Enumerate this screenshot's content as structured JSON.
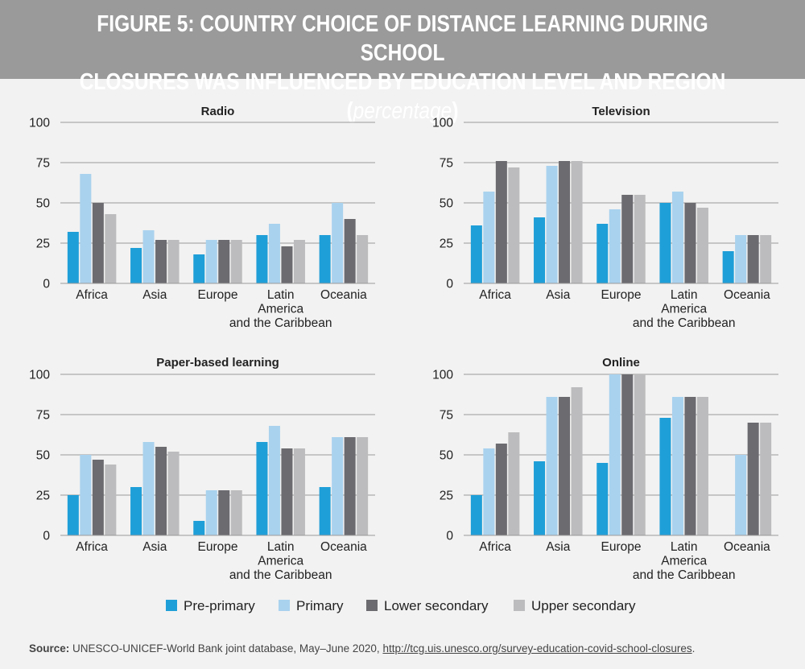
{
  "header": {
    "title_line1": "FIGURE 5: COUNTRY CHOICE OF DISTANCE LEARNING DURING SCHOOL",
    "title_line2": "CLOSURES WAS INFLUENCED BY EDUCATION LEVEL AND REGION (",
    "title_italic": "percentage",
    "title_close": ")"
  },
  "colors": {
    "pre_primary": "#1f9fd8",
    "primary": "#a9d2ee",
    "lower_secondary": "#6b6b70",
    "upper_secondary": "#bcbcbe",
    "gridline": "#9a9a9a",
    "header_bg": "#9a9a9a",
    "background": "#f2f2f2"
  },
  "legend": [
    {
      "label": "Pre-primary",
      "color": "#1f9fd8"
    },
    {
      "label": "Primary",
      "color": "#a9d2ee"
    },
    {
      "label": "Lower secondary",
      "color": "#6b6b70"
    },
    {
      "label": "Upper secondary",
      "color": "#bcbcbe"
    }
  ],
  "chart_data": [
    {
      "type": "bar",
      "title": "Radio",
      "categories": [
        "Africa",
        "Asia",
        "Europe",
        "Latin America and the Caribbean",
        "Oceania"
      ],
      "category_lines": [
        [
          "Africa"
        ],
        [
          "Asia"
        ],
        [
          "Europe"
        ],
        [
          "Latin",
          "America",
          "and the Caribbean"
        ],
        [
          "Oceania"
        ]
      ],
      "yticks": [
        0,
        25,
        50,
        75,
        100
      ],
      "ylim": [
        0,
        100
      ],
      "series": [
        {
          "name": "Pre-primary",
          "values": [
            32,
            22,
            18,
            30,
            30
          ]
        },
        {
          "name": "Primary",
          "values": [
            68,
            33,
            27,
            37,
            50
          ]
        },
        {
          "name": "Lower secondary",
          "values": [
            50,
            27,
            27,
            23,
            40
          ]
        },
        {
          "name": "Upper secondary",
          "values": [
            43,
            27,
            27,
            27,
            30
          ]
        }
      ]
    },
    {
      "type": "bar",
      "title": "Television",
      "categories": [
        "Africa",
        "Asia",
        "Europe",
        "Latin America and the Caribbean",
        "Oceania"
      ],
      "category_lines": [
        [
          "Africa"
        ],
        [
          "Asia"
        ],
        [
          "Europe"
        ],
        [
          "Latin",
          "America",
          "and the Caribbean"
        ],
        [
          "Oceania"
        ]
      ],
      "yticks": [
        0,
        25,
        50,
        75,
        100
      ],
      "ylim": [
        0,
        100
      ],
      "series": [
        {
          "name": "Pre-primary",
          "values": [
            36,
            41,
            37,
            50,
            20
          ]
        },
        {
          "name": "Primary",
          "values": [
            57,
            73,
            46,
            57,
            30
          ]
        },
        {
          "name": "Lower secondary",
          "values": [
            76,
            76,
            55,
            50,
            30
          ]
        },
        {
          "name": "Upper secondary",
          "values": [
            72,
            76,
            55,
            47,
            30
          ]
        }
      ]
    },
    {
      "type": "bar",
      "title": "Paper-based learning",
      "categories": [
        "Africa",
        "Asia",
        "Europe",
        "Latin America and the Caribbean",
        "Oceania"
      ],
      "category_lines": [
        [
          "Africa"
        ],
        [
          "Asia"
        ],
        [
          "Europe"
        ],
        [
          "Latin",
          "America",
          "and the Caribbean"
        ],
        [
          "Oceania"
        ]
      ],
      "yticks": [
        0,
        25,
        50,
        75,
        100
      ],
      "ylim": [
        0,
        100
      ],
      "series": [
        {
          "name": "Pre-primary",
          "values": [
            25,
            30,
            9,
            58,
            30
          ]
        },
        {
          "name": "Primary",
          "values": [
            50,
            58,
            28,
            68,
            61
          ]
        },
        {
          "name": "Lower secondary",
          "values": [
            47,
            55,
            28,
            54,
            61
          ]
        },
        {
          "name": "Upper secondary",
          "values": [
            44,
            52,
            28,
            54,
            61
          ]
        }
      ]
    },
    {
      "type": "bar",
      "title": "Online",
      "categories": [
        "Africa",
        "Asia",
        "Europe",
        "Latin America and the Caribbean",
        "Oceania"
      ],
      "category_lines": [
        [
          "Africa"
        ],
        [
          "Asia"
        ],
        [
          "Europe"
        ],
        [
          "Latin",
          "America",
          "and the Caribbean"
        ],
        [
          "Oceania"
        ]
      ],
      "yticks": [
        0,
        25,
        50,
        75,
        100
      ],
      "ylim": [
        0,
        100
      ],
      "series": [
        {
          "name": "Pre-primary",
          "values": [
            25,
            46,
            45,
            73,
            0
          ]
        },
        {
          "name": "Primary",
          "values": [
            54,
            86,
            100,
            86,
            50
          ]
        },
        {
          "name": "Lower secondary",
          "values": [
            57,
            86,
            100,
            86,
            70
          ]
        },
        {
          "name": "Upper secondary",
          "values": [
            64,
            92,
            100,
            86,
            70
          ]
        }
      ]
    }
  ],
  "source": {
    "label": "Source:",
    "text": " UNESCO-UNICEF-World Bank joint database, May–June 2020, ",
    "url": "http://tcg.uis.unesco.org/survey-education-covid-school-closures",
    "end": "."
  }
}
